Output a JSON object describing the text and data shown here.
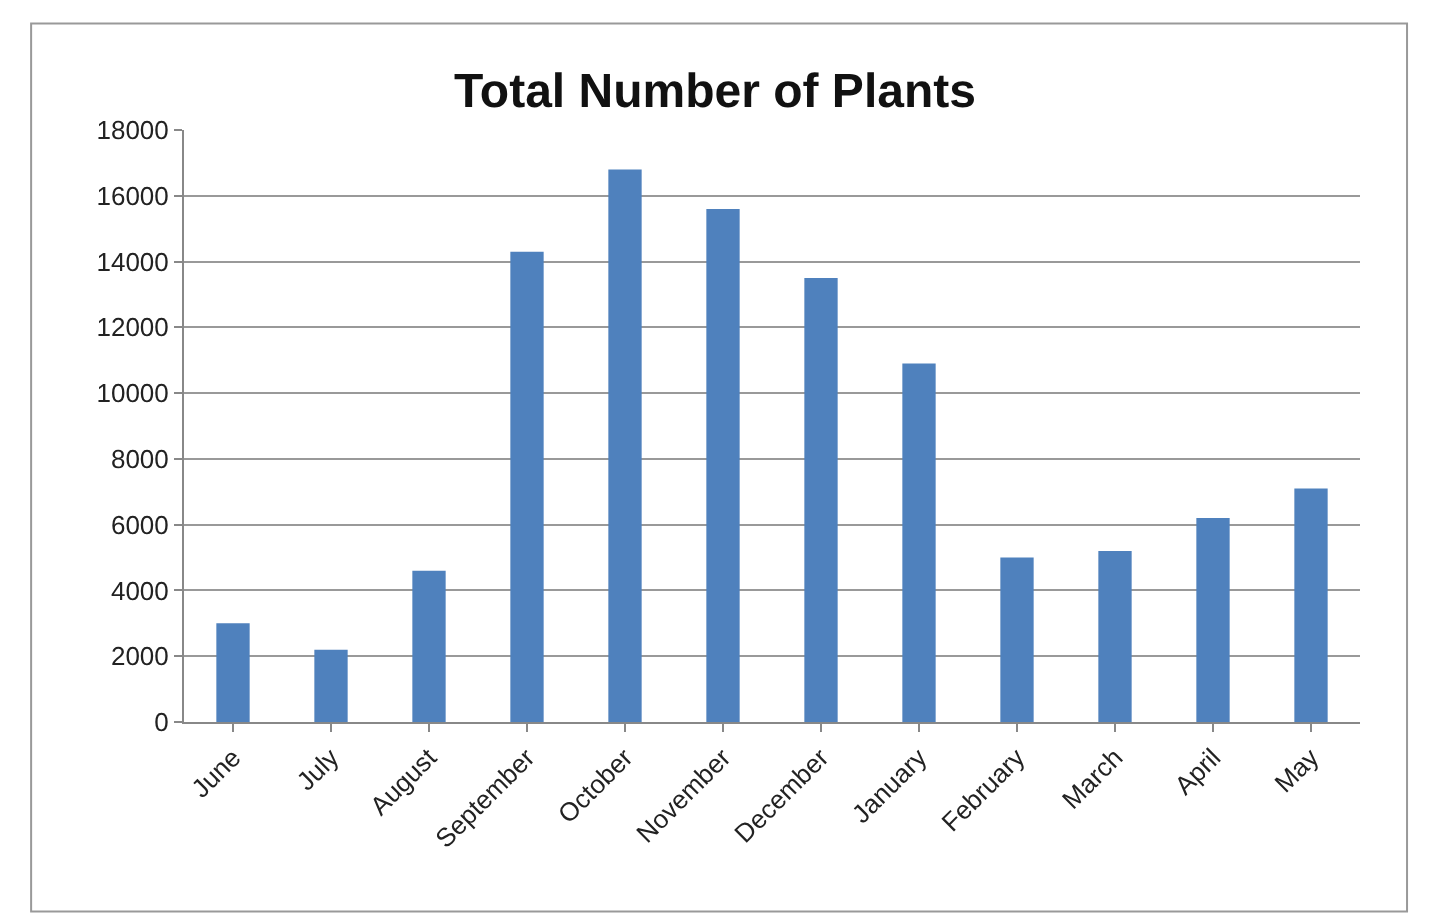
{
  "chart_data": {
    "type": "bar",
    "title": "Total Number of Plants",
    "categories": [
      "June",
      "July",
      "August",
      "September",
      "October",
      "November",
      "December",
      "January",
      "February",
      "March",
      "April",
      "May"
    ],
    "values": [
      3000,
      2200,
      4600,
      14300,
      16800,
      15600,
      13500,
      10900,
      5000,
      5200,
      6200,
      7100
    ],
    "color": "#4f81bd",
    "ylim": [
      0,
      18000
    ],
    "yticks": [
      0,
      2000,
      4000,
      6000,
      8000,
      10000,
      12000,
      14000,
      16000,
      18000
    ],
    "grid": "y"
  }
}
